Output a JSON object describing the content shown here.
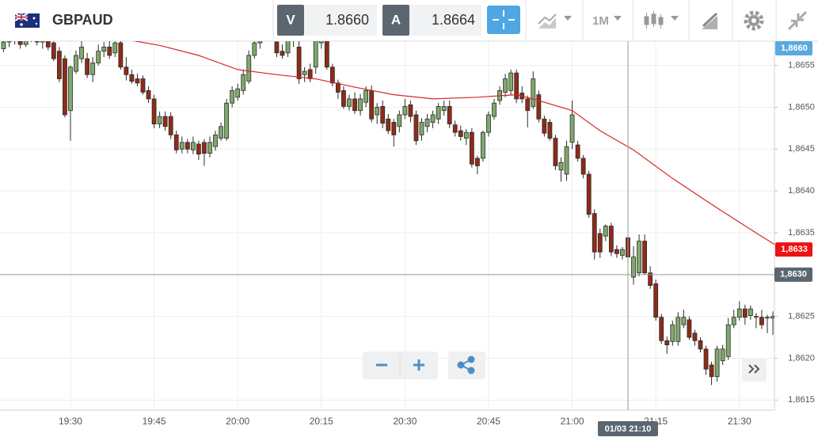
{
  "header": {
    "symbol": "GBPAUD",
    "bid_label": "V",
    "bid": "1.8660",
    "ask_label": "A",
    "ask": "1.8664",
    "timeframe": "1M"
  },
  "chart_data": {
    "type": "candlestick",
    "categories": [
      null,
      null,
      null,
      null,
      null,
      null,
      null,
      null,
      null,
      null,
      null,
      null,
      "19:30",
      null,
      null,
      null,
      null,
      null,
      null,
      null,
      null,
      null,
      null,
      null,
      null,
      null,
      null,
      "19:45",
      null,
      null,
      null,
      null,
      null,
      null,
      null,
      null,
      null,
      null,
      null,
      null,
      null,
      null,
      "20:00",
      null,
      null,
      null,
      null,
      null,
      null,
      null,
      null,
      null,
      null,
      null,
      null,
      null,
      null,
      "20:15",
      null,
      null,
      null,
      null,
      null,
      null,
      null,
      null,
      null,
      null,
      null,
      null,
      null,
      null,
      "20:30",
      null,
      null,
      null,
      null,
      null,
      null,
      null,
      null,
      null,
      null,
      null,
      null,
      null,
      null,
      "20:45",
      null,
      null,
      null,
      null,
      null,
      null,
      null,
      null,
      null,
      null,
      null,
      null,
      null,
      null,
      "21:00",
      null,
      null,
      null,
      null,
      null,
      null,
      null,
      null,
      null,
      null,
      null,
      null,
      null,
      null,
      "21:15",
      null,
      null,
      null,
      null,
      null,
      null,
      null,
      null,
      null,
      null,
      null,
      null,
      null,
      null,
      "21:30",
      null,
      null,
      null,
      null,
      null,
      null,
      null
    ],
    "values": [
      [
        1.8657,
        1.86582,
        1.86566,
        1.86578
      ],
      [
        1.86578,
        1.8659,
        1.86572,
        1.86585
      ],
      [
        1.86585,
        1.86592,
        1.86575,
        1.8658
      ],
      [
        1.8658,
        1.86588,
        1.8657,
        1.86575
      ],
      [
        1.86575,
        1.8659,
        1.86572,
        1.86586
      ],
      [
        1.86586,
        1.86595,
        1.86578,
        1.86582
      ],
      [
        1.86582,
        1.8659,
        1.86574,
        1.86578
      ],
      [
        1.86578,
        1.86588,
        1.8657,
        1.86584
      ],
      [
        1.86584,
        1.8659,
        1.86568,
        1.86572
      ],
      [
        1.86577,
        1.86582,
        1.86555,
        1.86558
      ],
      [
        1.86567,
        1.86572,
        1.8653,
        1.86534
      ],
      [
        1.86558,
        1.86562,
        1.86488,
        1.86491
      ],
      [
        1.86496,
        1.8655,
        1.8646,
        1.86548
      ],
      [
        1.86543,
        1.86568,
        1.8654,
        1.86562
      ],
      [
        1.86558,
        1.8658,
        1.86553,
        1.86572
      ],
      [
        1.86558,
        1.86565,
        1.86535,
        1.86539
      ],
      [
        1.86539,
        1.8656,
        1.8653,
        1.86553
      ],
      [
        1.86553,
        1.86575,
        1.8655,
        1.86567
      ],
      [
        1.86567,
        1.86578,
        1.8656,
        1.86572
      ],
      [
        1.86572,
        1.8658,
        1.86558,
        1.86562
      ],
      [
        1.86565,
        1.86585,
        1.8656,
        1.86577
      ],
      [
        1.86577,
        1.8659,
        1.86545,
        1.86548
      ],
      [
        1.86548,
        1.8656,
        1.86532,
        1.86539
      ],
      [
        1.86539,
        1.86545,
        1.86528,
        1.86531
      ],
      [
        1.86534,
        1.8654,
        1.86525,
        1.86529
      ],
      [
        1.86534,
        1.86538,
        1.86515,
        1.86518
      ],
      [
        1.8652,
        1.86525,
        1.86505,
        1.8651
      ],
      [
        1.8651,
        1.86515,
        1.86475,
        1.8648
      ],
      [
        1.8648,
        1.86495,
        1.86475,
        1.86489
      ],
      [
        1.86489,
        1.86495,
        1.86472,
        1.86477
      ],
      [
        1.86489,
        1.86494,
        1.86462,
        1.86467
      ],
      [
        1.86467,
        1.86472,
        1.86445,
        1.86449
      ],
      [
        1.8645,
        1.86465,
        1.86445,
        1.86458
      ],
      [
        1.86458,
        1.86462,
        1.86445,
        1.8645
      ],
      [
        1.86449,
        1.86465,
        1.86444,
        1.86458
      ],
      [
        1.86456,
        1.8646,
        1.86437,
        1.86444
      ],
      [
        1.86458,
        1.86462,
        1.8643,
        1.86445
      ],
      [
        1.86445,
        1.86465,
        1.8644,
        1.86458
      ],
      [
        1.86453,
        1.86472,
        1.86448,
        1.86467
      ],
      [
        1.86463,
        1.86482,
        1.8646,
        1.86477
      ],
      [
        1.86463,
        1.8651,
        1.8646,
        1.86505
      ],
      [
        1.86505,
        1.86525,
        1.865,
        1.8652
      ],
      [
        1.86512,
        1.86528,
        1.86508,
        1.86522
      ],
      [
        1.8652,
        1.86545,
        1.86515,
        1.86539
      ],
      [
        1.86531,
        1.86568,
        1.86528,
        1.86562
      ],
      [
        1.86562,
        1.8659,
        1.86558,
        1.86577
      ],
      [
        1.86577,
        1.86595,
        1.8657,
        1.86588
      ],
      [
        1.86588,
        1.86605,
        1.8658,
        1.86598
      ],
      [
        1.86598,
        1.8661,
        1.86588,
        1.86592
      ],
      [
        1.86578,
        1.86592,
        1.8656,
        1.86565
      ],
      [
        1.86567,
        1.86575,
        1.86558,
        1.86562
      ],
      [
        1.86565,
        1.8659,
        1.8656,
        1.8658
      ],
      [
        1.8658,
        1.86595,
        1.86572,
        1.86585
      ],
      [
        1.86572,
        1.8658,
        1.86528,
        1.86534
      ],
      [
        1.86539,
        1.86548,
        1.8653,
        1.86543
      ],
      [
        1.86545,
        1.86552,
        1.8653,
        1.86534
      ],
      [
        1.86548,
        1.8659,
        1.8654,
        1.86581
      ],
      [
        1.86577,
        1.866,
        1.8657,
        1.86586
      ],
      [
        1.86581,
        1.8659,
        1.86545,
        1.86548
      ],
      [
        1.86548,
        1.86552,
        1.86525,
        1.86529
      ],
      [
        1.86529,
        1.86533,
        1.8651,
        1.86518
      ],
      [
        1.8652,
        1.86525,
        1.86498,
        1.86501
      ],
      [
        1.86501,
        1.86515,
        1.86496,
        1.8651
      ],
      [
        1.8651,
        1.86518,
        1.86492,
        1.86496
      ],
      [
        1.86496,
        1.86516,
        1.8649,
        1.8651
      ],
      [
        1.86506,
        1.86525,
        1.865,
        1.8652
      ],
      [
        1.8652,
        1.86526,
        1.86482,
        1.86486
      ],
      [
        1.86491,
        1.86505,
        1.8648,
        1.865
      ],
      [
        1.86501,
        1.86508,
        1.86475,
        1.86481
      ],
      [
        1.86486,
        1.86492,
        1.86468,
        1.86472
      ],
      [
        1.86482,
        1.86486,
        1.86453,
        1.86467
      ],
      [
        1.86477,
        1.86496,
        1.8647,
        1.86491
      ],
      [
        1.86491,
        1.8651,
        1.86486,
        1.86501
      ],
      [
        1.86503,
        1.86508,
        1.86482,
        1.86489
      ],
      [
        1.86491,
        1.86496,
        1.86455,
        1.8646
      ],
      [
        1.86467,
        1.86487,
        1.8646,
        1.86482
      ],
      [
        1.86477,
        1.86492,
        1.8647,
        1.86486
      ],
      [
        1.86482,
        1.86496,
        1.86475,
        1.86491
      ],
      [
        1.86486,
        1.86505,
        1.8648,
        1.86501
      ],
      [
        1.86496,
        1.86508,
        1.8649,
        1.86501
      ],
      [
        1.86501,
        1.86508,
        1.86475,
        1.8648
      ],
      [
        1.86479,
        1.86484,
        1.86465,
        1.8647
      ],
      [
        1.86472,
        1.86478,
        1.8646,
        1.86465
      ],
      [
        1.86463,
        1.86474,
        1.86455,
        1.8647
      ],
      [
        1.8647,
        1.86475,
        1.86428,
        1.86432
      ],
      [
        1.86439,
        1.86442,
        1.8642,
        1.8643
      ],
      [
        1.86439,
        1.86472,
        1.86435,
        1.8647
      ],
      [
        1.8647,
        1.86495,
        1.86465,
        1.86491
      ],
      [
        1.86489,
        1.8651,
        1.86485,
        1.86505
      ],
      [
        1.86508,
        1.86525,
        1.86503,
        1.8652
      ],
      [
        1.86518,
        1.8654,
        1.86512,
        1.86534
      ],
      [
        1.8652,
        1.86545,
        1.86515,
        1.86541
      ],
      [
        1.86541,
        1.86545,
        1.86505,
        1.8651
      ],
      [
        1.86517,
        1.86525,
        1.86505,
        1.8651
      ],
      [
        1.8651,
        1.86514,
        1.86476,
        1.86496
      ],
      [
        1.86501,
        1.86543,
        1.86498,
        1.86534
      ],
      [
        1.86515,
        1.8652,
        1.86482,
        1.86486
      ],
      [
        1.86486,
        1.8649,
        1.86465,
        1.86469
      ],
      [
        1.86482,
        1.86486,
        1.8646,
        1.86463
      ],
      [
        1.86463,
        1.86467,
        1.86425,
        1.8643
      ],
      [
        1.86425,
        1.8644,
        1.86411,
        1.86434
      ],
      [
        1.8642,
        1.8646,
        1.86412,
        1.86453
      ],
      [
        1.86458,
        1.86508,
        1.8645,
        1.86491
      ],
      [
        1.86455,
        1.8646,
        1.86435,
        1.86439
      ],
      [
        1.86439,
        1.86443,
        1.86415,
        1.8642
      ],
      [
        1.8642,
        1.86424,
        1.86368,
        1.86372
      ],
      [
        1.86373,
        1.86378,
        1.86318,
        1.86327
      ],
      [
        1.86349,
        1.86355,
        1.8632,
        1.86327
      ],
      [
        1.86346,
        1.8636,
        1.8634,
        1.86358
      ],
      [
        1.86358,
        1.86362,
        1.86322,
        1.86327
      ],
      [
        1.8633,
        1.86335,
        1.8632,
        1.86325
      ],
      [
        1.86323,
        1.86333,
        1.86318,
        1.8633
      ],
      [
        1.86344,
        1.86348,
        1.86316,
        1.86321
      ],
      [
        1.86297,
        1.86334,
        1.86288,
        1.86321
      ],
      [
        1.86302,
        1.86348,
        1.86298,
        1.8634
      ],
      [
        1.8634,
        1.86348,
        1.863,
        1.86302
      ],
      [
        1.86302,
        1.8631,
        1.86283,
        1.86287
      ],
      [
        1.86289,
        1.86294,
        1.86245,
        1.86249
      ],
      [
        1.86249,
        1.86253,
        1.86217,
        1.86221
      ],
      [
        1.86221,
        1.86226,
        1.86205,
        1.86216
      ],
      [
        1.8622,
        1.86245,
        1.86215,
        1.8624
      ],
      [
        1.8622,
        1.86255,
        1.86215,
        1.86249
      ],
      [
        1.8624,
        1.86258,
        1.86236,
        1.86249
      ],
      [
        1.86246,
        1.8625,
        1.86222,
        1.86225
      ],
      [
        1.8623,
        1.86234,
        1.86215,
        1.86221
      ],
      [
        1.86221,
        1.86225,
        1.86207,
        1.86211
      ],
      [
        1.86211,
        1.86215,
        1.8618,
        1.86187
      ],
      [
        1.86192,
        1.86196,
        1.86168,
        1.86178
      ],
      [
        1.86178,
        1.86215,
        1.86172,
        1.86211
      ],
      [
        1.86197,
        1.86216,
        1.86192,
        1.86211
      ],
      [
        1.86202,
        1.86248,
        1.86198,
        1.8624
      ],
      [
        1.8624,
        1.86258,
        1.86236,
        1.86249
      ],
      [
        1.86249,
        1.86268,
        1.86245,
        1.86259
      ],
      [
        1.86259,
        1.86264,
        1.8624,
        1.86249
      ],
      [
        1.86251,
        1.86263,
        1.86246,
        1.86259
      ],
      [
        1.86249,
        1.86254,
        1.86236,
        1.8625
      ],
      [
        1.86249,
        1.86258,
        1.86235,
        1.8624
      ],
      [
        1.86249,
        1.86252,
        1.8623,
        1.86249
      ],
      [
        1.86248,
        1.86256,
        1.86228,
        1.8625
      ],
      [
        1.8625,
        1.86265,
        1.86218,
        1.86221
      ]
    ],
    "up_color": "#7faa6a",
    "down_color": "#8f2b17",
    "ma": {
      "color": "#d62828",
      "x_index": [
        22,
        28,
        35,
        42,
        49,
        56,
        63,
        70,
        77,
        85,
        92,
        96,
        102,
        107,
        113,
        120,
        127,
        134,
        139
      ],
      "values": [
        1.86581,
        1.86574,
        1.86562,
        1.86545,
        1.86539,
        1.86534,
        1.86524,
        1.86515,
        1.8651,
        1.86512,
        1.86515,
        1.86508,
        1.86496,
        1.86472,
        1.86449,
        1.86415,
        1.86384,
        1.86354,
        1.86333
      ]
    },
    "ylim": [
      1.86138,
      1.86579
    ],
    "yticks": [
      {
        "value": 1.8615,
        "label": "1,8615"
      },
      {
        "value": 1.862,
        "label": "1,8620"
      },
      {
        "value": 1.8625,
        "label": "1,8625"
      },
      {
        "value": 1.8635,
        "label": "1,8635"
      },
      {
        "value": 1.864,
        "label": "1,8640"
      },
      {
        "value": 1.8645,
        "label": "1,8645"
      },
      {
        "value": 1.865,
        "label": "1,8650"
      },
      {
        "value": 1.8655,
        "label": "1,8655"
      }
    ],
    "grid": true,
    "crosshair": {
      "x": {
        "index": 112,
        "label": "01/03 21:10"
      },
      "y": {
        "value": 1.863,
        "label": "1,8630"
      }
    },
    "markers": [
      {
        "value": 1.866,
        "label": "1,8660",
        "color": "#5aaae0"
      },
      {
        "value": 1.8633,
        "label": "1,8633",
        "color": "#ee1111"
      }
    ]
  }
}
